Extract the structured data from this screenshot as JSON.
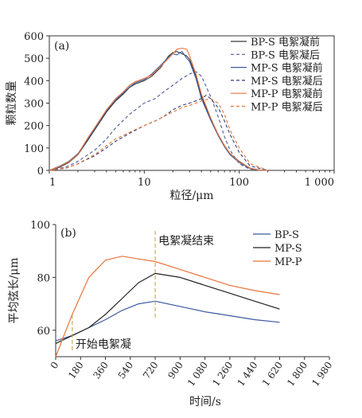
{
  "chart_data": [
    {
      "panel_label": "(a)",
      "type": "line",
      "xscale": "log",
      "xlabel": "粒径/μm",
      "ylabel": "颗粒数量",
      "xlim": [
        1,
        1000
      ],
      "ylim": [
        0,
        600
      ],
      "xticks": [
        1,
        10,
        100,
        1000
      ],
      "xtick_labels": [
        "1",
        "10",
        "100",
        "1 000"
      ],
      "yticks": [
        0,
        100,
        200,
        300,
        400,
        500,
        600
      ],
      "legend_position": "top-right",
      "series": [
        {
          "name": "BP-S 电絮凝前",
          "color": "#3a3a3a",
          "style": "solid",
          "x": [
            1,
            1.3,
            1.6,
            2,
            2.5,
            3,
            4,
            5,
            6,
            7,
            8,
            10,
            12,
            15,
            18,
            20,
            22,
            25,
            28,
            30,
            35,
            40,
            50,
            60,
            70,
            80,
            100,
            130,
            160,
            200
          ],
          "y": [
            0,
            15,
            35,
            70,
            130,
            180,
            260,
            310,
            340,
            370,
            385,
            400,
            420,
            460,
            510,
            525,
            530,
            520,
            510,
            495,
            420,
            330,
            230,
            160,
            110,
            75,
            40,
            10,
            2,
            0
          ]
        },
        {
          "name": "BP-S 电絮凝后",
          "color": "#4a5a9a",
          "style": "dash",
          "x": [
            1,
            1.5,
            2,
            3,
            4,
            5,
            7,
            10,
            13,
            16,
            20,
            25,
            30,
            35,
            40,
            50,
            60,
            70,
            80,
            100,
            130,
            200
          ],
          "y": [
            0,
            15,
            40,
            90,
            140,
            190,
            250,
            300,
            320,
            350,
            380,
            410,
            430,
            440,
            420,
            330,
            240,
            150,
            90,
            30,
            5,
            0
          ]
        },
        {
          "name": "MP-S 电絮凝前",
          "color": "#3a5aa0",
          "style": "solid",
          "x": [
            1,
            1.3,
            1.6,
            2,
            2.5,
            3,
            4,
            5,
            6,
            7,
            8,
            10,
            12,
            15,
            18,
            20,
            22,
            25,
            28,
            30,
            35,
            40,
            50,
            60,
            70,
            80,
            100,
            130,
            160,
            200
          ],
          "y": [
            0,
            20,
            40,
            75,
            135,
            185,
            265,
            315,
            345,
            372,
            390,
            405,
            430,
            470,
            505,
            520,
            515,
            530,
            500,
            485,
            410,
            320,
            225,
            155,
            105,
            70,
            35,
            8,
            1,
            0
          ]
        },
        {
          "name": "MP-S 电絮凝后",
          "color": "#2d3f7a",
          "style": "dash",
          "x": [
            1,
            1.5,
            2,
            3,
            4,
            5,
            7,
            10,
            13,
            16,
            20,
            25,
            30,
            35,
            40,
            45,
            50,
            60,
            70,
            80,
            100,
            130,
            200
          ],
          "y": [
            0,
            10,
            30,
            65,
            100,
            130,
            165,
            200,
            220,
            240,
            270,
            290,
            300,
            310,
            320,
            335,
            320,
            280,
            220,
            160,
            80,
            20,
            0
          ]
        },
        {
          "name": "MP-P 电絮凝前",
          "color": "#e8743b",
          "style": "solid",
          "x": [
            1,
            1.3,
            1.6,
            2,
            2.5,
            3,
            4,
            5,
            6,
            7,
            8,
            10,
            12,
            15,
            18,
            20,
            22,
            25,
            28,
            30,
            35,
            40,
            50,
            60,
            70,
            80,
            100,
            130,
            160,
            200
          ],
          "y": [
            0,
            18,
            38,
            72,
            140,
            190,
            270,
            320,
            350,
            380,
            395,
            410,
            425,
            465,
            500,
            520,
            540,
            545,
            540,
            510,
            430,
            340,
            235,
            160,
            110,
            75,
            38,
            10,
            2,
            0
          ]
        },
        {
          "name": "MP-P 电絮凝后",
          "color": "#e8743b",
          "style": "dash",
          "x": [
            1,
            1.5,
            2,
            3,
            4,
            5,
            7,
            10,
            13,
            16,
            20,
            25,
            30,
            35,
            40,
            50,
            60,
            70,
            80,
            100,
            130,
            200
          ],
          "y": [
            0,
            10,
            30,
            70,
            110,
            140,
            170,
            200,
            220,
            240,
            260,
            280,
            290,
            300,
            310,
            320,
            300,
            250,
            180,
            100,
            30,
            0
          ]
        }
      ]
    },
    {
      "panel_label": "(b)",
      "type": "line",
      "xlabel": "时间/s",
      "ylabel": "平均弦长/μm",
      "xlim": [
        0,
        1980
      ],
      "ylim": [
        50,
        100
      ],
      "xticks": [
        0,
        180,
        360,
        540,
        720,
        900,
        1080,
        1260,
        1440,
        1620,
        1800,
        1980
      ],
      "xtick_labels": [
        "0",
        "180",
        "360",
        "540",
        "720",
        "900",
        "1 080",
        "1 260",
        "1 440",
        "1 620",
        "1 800",
        "1 980"
      ],
      "yticks": [
        60,
        80,
        100
      ],
      "legend_position": "top-right",
      "annotations": [
        {
          "text": "电絮凝结束",
          "x": 720
        },
        {
          "text": "开始电絮凝",
          "x": 120
        }
      ],
      "series": [
        {
          "name": "BP-S",
          "color": "#3a5aa0",
          "x": [
            0,
            120,
            240,
            360,
            480,
            600,
            720,
            900,
            1080,
            1260,
            1440,
            1620
          ],
          "y": [
            56,
            58,
            61,
            64,
            67.5,
            70,
            71,
            69,
            67,
            65.5,
            64,
            63
          ]
        },
        {
          "name": "MP-S",
          "color": "#222222",
          "x": [
            0,
            120,
            240,
            360,
            480,
            600,
            720,
            900,
            1080,
            1260,
            1440,
            1620
          ],
          "y": [
            55,
            58,
            61,
            66,
            72,
            78,
            81.5,
            80,
            77,
            74,
            71,
            68
          ]
        },
        {
          "name": "MP-P",
          "color": "#e8743b",
          "x": [
            0,
            60,
            120,
            240,
            360,
            480,
            600,
            720,
            900,
            1080,
            1260,
            1440,
            1620
          ],
          "y": [
            50,
            58,
            66,
            80,
            86.5,
            88,
            87,
            86,
            83,
            80,
            77,
            75,
            73.5
          ]
        }
      ]
    }
  ]
}
